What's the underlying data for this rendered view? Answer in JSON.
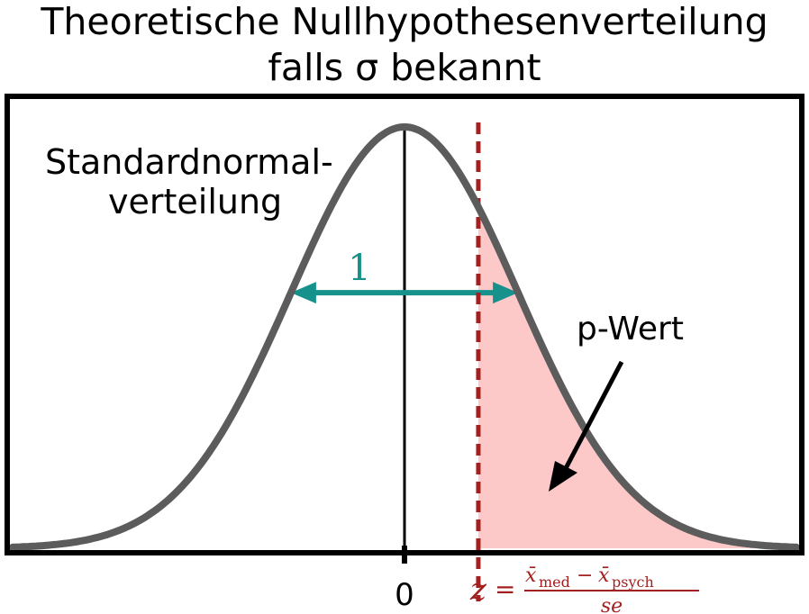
{
  "title": {
    "line1": "Theoretische Nullhypothesenverteilung",
    "line2": "falls σ bekannt"
  },
  "curve_label": {
    "line1": "Standardnormal-",
    "line2": "verteilung"
  },
  "sd_label": "1",
  "pvalue_label": "p-Wert",
  "x_tick_label": "0",
  "z_formula": {
    "lhs": "z",
    "eq": "=",
    "num_a": "x̄",
    "num_a_sub": "med",
    "minus": "−",
    "num_b": "x̄",
    "num_b_sub": "psych",
    "den": "se"
  },
  "diagram": {
    "distribution": "standard normal",
    "mean": 0,
    "sd": 1,
    "x_range": [
      -3.45,
      3.45
    ],
    "z_value": 0.65,
    "shaded_tail": "right",
    "curve_color": "#5c5c5c",
    "z_line_color": "#a32020",
    "tail_fill_color": "#fcc8c8",
    "sd_arrow_color": "#16918c",
    "frame_color": "#000000"
  }
}
